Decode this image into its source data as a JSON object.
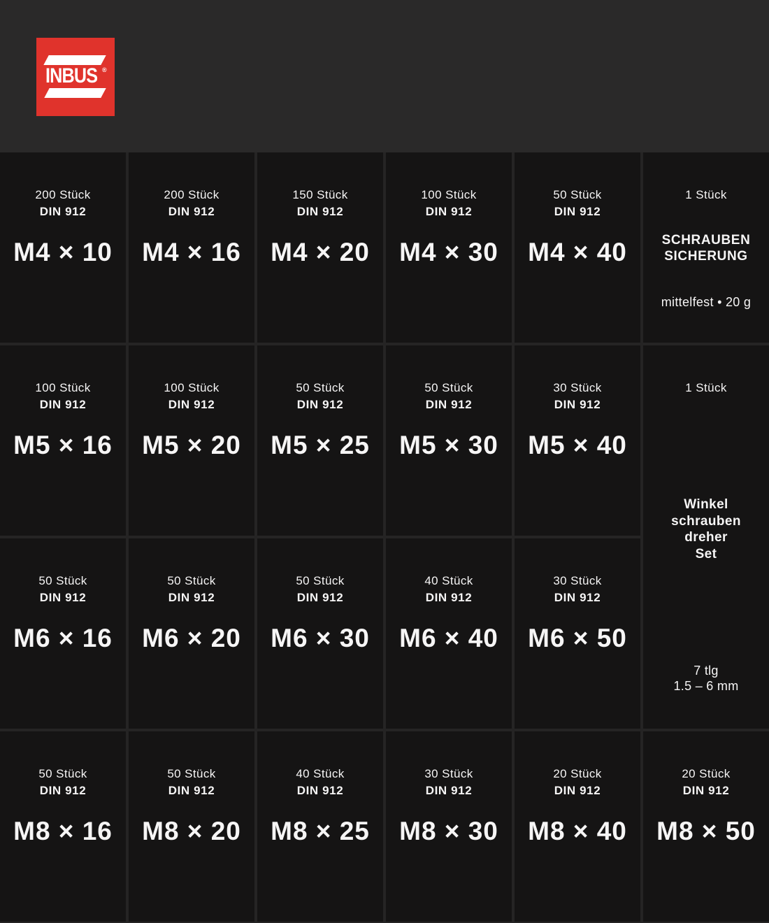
{
  "brand": {
    "name": "INBUS",
    "registered": "®"
  },
  "colors": {
    "header_bg": "#2a2929",
    "grid_gap": "#252424",
    "cell_bg": "#151414",
    "text": "#f6f5f5",
    "logo_red": "#e0332c"
  },
  "cells": [
    {
      "count": "200 Stück",
      "standard": "DIN 912",
      "size": "M4 × 10"
    },
    {
      "count": "200 Stück",
      "standard": "DIN 912",
      "size": "M4 × 16"
    },
    {
      "count": "150 Stück",
      "standard": "DIN 912",
      "size": "M4 × 20"
    },
    {
      "count": "100 Stück",
      "standard": "DIN 912",
      "size": "M4 × 30"
    },
    {
      "count": "50 Stück",
      "standard": "DIN 912",
      "size": "M4 × 40"
    },
    {
      "count": "1 Stück",
      "title": [
        "SCHRAUBEN",
        "SICHERUNG"
      ],
      "note": "mittelfest • 20 g"
    },
    {
      "count": "100 Stück",
      "standard": "DIN 912",
      "size": "M5 × 16"
    },
    {
      "count": "100 Stück",
      "standard": "DIN 912",
      "size": "M5 × 20"
    },
    {
      "count": "50 Stück",
      "standard": "DIN 912",
      "size": "M5 × 25"
    },
    {
      "count": "50 Stück",
      "standard": "DIN 912",
      "size": "M5 × 30"
    },
    {
      "count": "30 Stück",
      "standard": "DIN 912",
      "size": "M5 × 40"
    },
    {
      "count": "1 Stück",
      "title": [
        "Winkel",
        "schrauben",
        "dreher",
        "Set"
      ],
      "note": [
        "7 tlg",
        "1.5 – 6 mm"
      ]
    },
    {
      "count": "50 Stück",
      "standard": "DIN 912",
      "size": "M6 × 16"
    },
    {
      "count": "50 Stück",
      "standard": "DIN 912",
      "size": "M6 × 20"
    },
    {
      "count": "50 Stück",
      "standard": "DIN 912",
      "size": "M6 × 30"
    },
    {
      "count": "40 Stück",
      "standard": "DIN 912",
      "size": "M6 × 40"
    },
    {
      "count": "30 Stück",
      "standard": "DIN 912",
      "size": "M6 × 50"
    },
    {
      "count": "50 Stück",
      "standard": "DIN 912",
      "size": "M8 × 16"
    },
    {
      "count": "50 Stück",
      "standard": "DIN 912",
      "size": "M8 × 20"
    },
    {
      "count": "40 Stück",
      "standard": "DIN 912",
      "size": "M8 × 25"
    },
    {
      "count": "30 Stück",
      "standard": "DIN 912",
      "size": "M8 × 30"
    },
    {
      "count": "20 Stück",
      "standard": "DIN 912",
      "size": "M8 × 40"
    },
    {
      "count": "20 Stück",
      "standard": "DIN 912",
      "size": "M8 × 50"
    }
  ]
}
